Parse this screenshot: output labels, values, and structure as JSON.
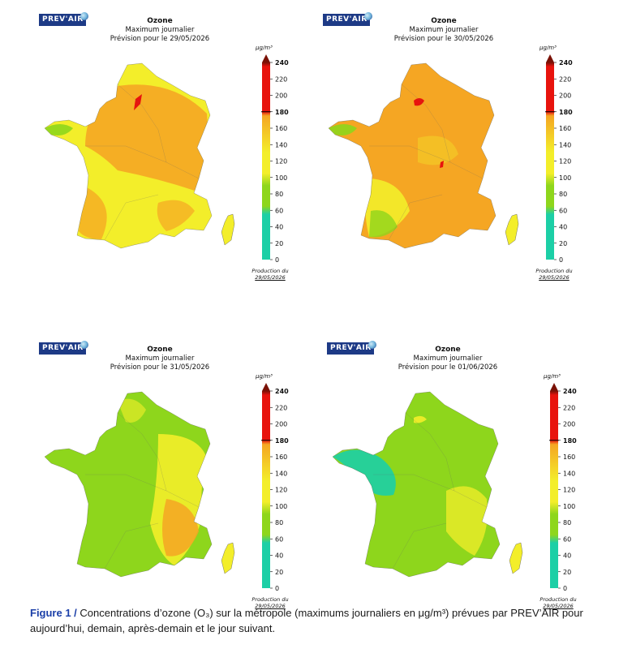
{
  "brand": "PREV'AIR",
  "panels": [
    {
      "title": "Ozone",
      "subtitle": "Maximum journalier",
      "forecast": "Prévision pour le 29/05/2026",
      "unit": "μg/m³",
      "production_label": "Production du",
      "production_date": "29/05/2026",
      "scheme": "warm1"
    },
    {
      "title": "Ozone",
      "subtitle": "Maximum journalier",
      "forecast": "Prévision pour le 30/05/2026",
      "unit": "μg/m³",
      "production_label": "Production du",
      "production_date": "29/05/2026",
      "scheme": "warm2"
    },
    {
      "title": "Ozone",
      "subtitle": "Maximum journalier",
      "forecast": "Prévision pour le 31/05/2026",
      "unit": "μg/m³",
      "production_label": "Production du",
      "production_date": "29/05/2026",
      "scheme": "green1"
    },
    {
      "title": "Ozone",
      "subtitle": "Maximum journalier",
      "forecast": "Prévision pour le 01/06/2026",
      "unit": "μg/m³",
      "production_label": "Production du",
      "production_date": "29/05/2026",
      "scheme": "green2"
    }
  ],
  "colorbar": {
    "ticks": [
      "240",
      "220",
      "200",
      "180",
      "160",
      "140",
      "120",
      "100",
      "80",
      "60",
      "40",
      "20",
      "0"
    ],
    "bold_ticks": [
      "240",
      "180"
    ]
  },
  "colors": {
    "teal": "#1ccfa6",
    "green": "#8ed61c",
    "yellow": "#f3ee2a",
    "orange": "#f5a623",
    "red": "#e8130d",
    "darkred": "#7a1106",
    "brand_blue": "#1d3a86",
    "caption_blue": "#1b3fa8"
  },
  "caption": {
    "label": "Figure 1 /",
    "text": "Concentrations d’ozone (O₃) sur la métropole (maximums journaliers en μg/m³) prévues par PREV’AIR pour aujourd’hui, demain, après-demain et le jour suivant."
  }
}
